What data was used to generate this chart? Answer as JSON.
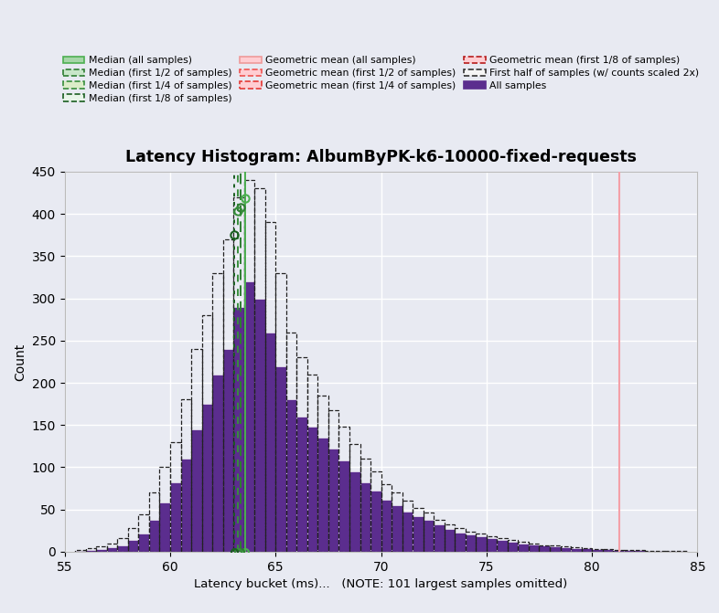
{
  "title": "Latency Histogram: AlbumByPK-k6-10000-fixed-requests",
  "xlabel": "Latency bucket (ms)...   (NOTE: 101 largest samples omitted)",
  "ylabel": "Count",
  "xlim": [
    55,
    85
  ],
  "ylim": [
    0,
    450
  ],
  "xticks": [
    55,
    60,
    65,
    70,
    75,
    80,
    85
  ],
  "yticks": [
    0,
    50,
    100,
    150,
    200,
    250,
    300,
    350,
    400,
    450
  ],
  "bg_color": "#e8eaf2",
  "bar_color_all": "#5b2d8e",
  "bar_edge_white": "#ffffff",
  "bar_half_edge": "#222222",
  "bin_edges": [
    55.0,
    55.5,
    56.0,
    56.5,
    57.0,
    57.5,
    58.0,
    58.5,
    59.0,
    59.5,
    60.0,
    60.5,
    61.0,
    61.5,
    62.0,
    62.5,
    63.0,
    63.5,
    64.0,
    64.5,
    65.0,
    65.5,
    66.0,
    66.5,
    67.0,
    67.5,
    68.0,
    68.5,
    69.0,
    69.5,
    70.0,
    70.5,
    71.0,
    71.5,
    72.0,
    72.5,
    73.0,
    73.5,
    74.0,
    74.5,
    75.0,
    75.5,
    76.0,
    76.5,
    77.0,
    77.5,
    78.0,
    78.5,
    79.0,
    79.5,
    80.0,
    80.5,
    81.0,
    81.5,
    82.0,
    82.5,
    83.0,
    83.5,
    84.0,
    84.5,
    85.0
  ],
  "all_counts": [
    0,
    1,
    2,
    3,
    5,
    8,
    14,
    22,
    38,
    58,
    82,
    110,
    145,
    175,
    210,
    240,
    290,
    320,
    300,
    260,
    220,
    180,
    160,
    148,
    135,
    122,
    108,
    95,
    82,
    72,
    62,
    55,
    48,
    42,
    38,
    32,
    27,
    23,
    20,
    18,
    16,
    14,
    12,
    10,
    9,
    7,
    6,
    5,
    4,
    4,
    3,
    3,
    2,
    2,
    2,
    1,
    1,
    1,
    1,
    0
  ],
  "half_counts_scaled": [
    0,
    2,
    4,
    6,
    10,
    16,
    28,
    44,
    70,
    100,
    130,
    180,
    240,
    280,
    330,
    370,
    420,
    440,
    430,
    390,
    330,
    260,
    230,
    210,
    185,
    168,
    148,
    128,
    110,
    95,
    80,
    70,
    60,
    52,
    46,
    38,
    32,
    28,
    24,
    22,
    18,
    16,
    14,
    12,
    10,
    8,
    7,
    6,
    5,
    4,
    3,
    3,
    2,
    2,
    2,
    1,
    1,
    1,
    1,
    0
  ],
  "median_all_x": 63.55,
  "median_half_x": 63.35,
  "median_quarter_x": 63.2,
  "median_eighth_x": 63.05,
  "geomean_x": 81.3,
  "median_all_color": "#4caf50",
  "median_half_color": "#2e7d32",
  "median_quarter_color": "#388e3c",
  "median_eighth_color": "#1a5e20",
  "geomean_color": "#f4a0a8",
  "legend_green_fill": "#c8e6c9",
  "legend_green_fill2": "#a5d6a7",
  "legend_green_fill3": "#dcedc8",
  "legend_green_fill4": "#e8f5e9",
  "legend_red_fill": "#ffcdd2",
  "legend_green_edge1": "#4caf50",
  "legend_green_edge2": "#2e7d32",
  "legend_green_edge3": "#388e3c",
  "legend_green_edge4": "#1a5e20",
  "legend_red_edge1": "#ef9a9a",
  "legend_red_edge2": "#ef5350",
  "legend_red_edge3": "#e53935",
  "legend_red_edge4": "#b71c1c",
  "legend_black_fill": "#f5f5f5",
  "legend_black_edge": "#333333",
  "legend_purple_fill": "#5b2d8e"
}
